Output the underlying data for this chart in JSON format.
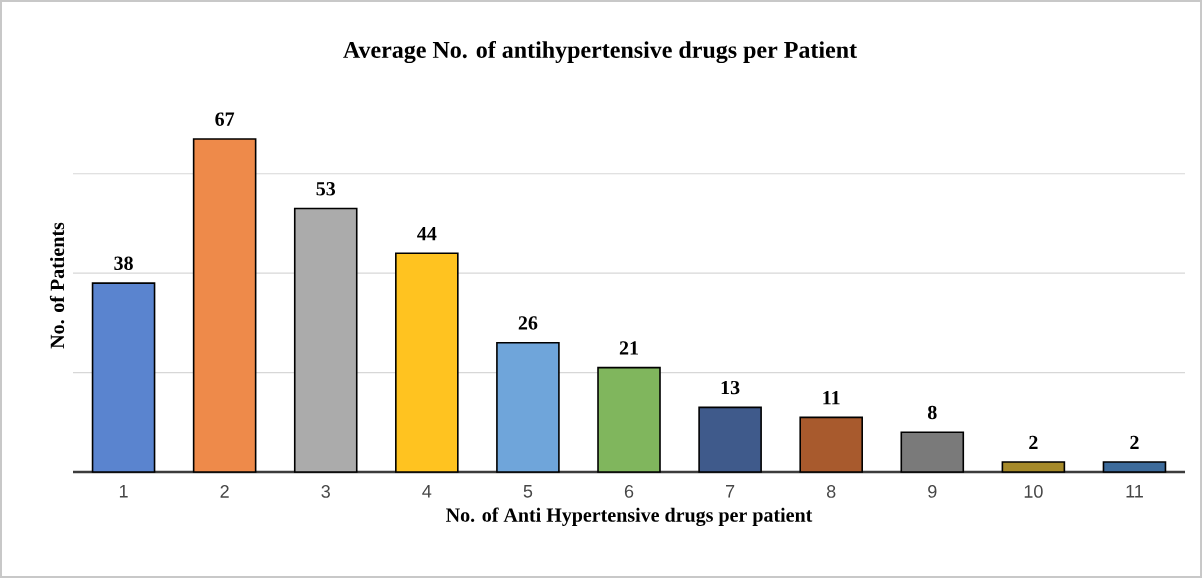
{
  "chart_data": {
    "type": "bar",
    "title": "Average No. of antihypertensive drugs per Patient",
    "xlabel": "No. of Anti Hypertensive drugs per patient",
    "ylabel": "No. of Patients",
    "categories": [
      "1",
      "2",
      "3",
      "4",
      "5",
      "6",
      "7",
      "8",
      "9",
      "10",
      "11"
    ],
    "values": [
      38,
      67,
      53,
      44,
      26,
      21,
      13,
      11,
      8,
      2,
      2
    ],
    "colors": [
      "#5a84cf",
      "#ee8a4a",
      "#ababab",
      "#ffc320",
      "#6fa5da",
      "#80b65d",
      "#3f5a8b",
      "#a85a2d",
      "#7a7a7a",
      "#a68a2a",
      "#3d6b9b"
    ],
    "tick_labels": "x",
    "grid": "y",
    "data_labels": true
  }
}
